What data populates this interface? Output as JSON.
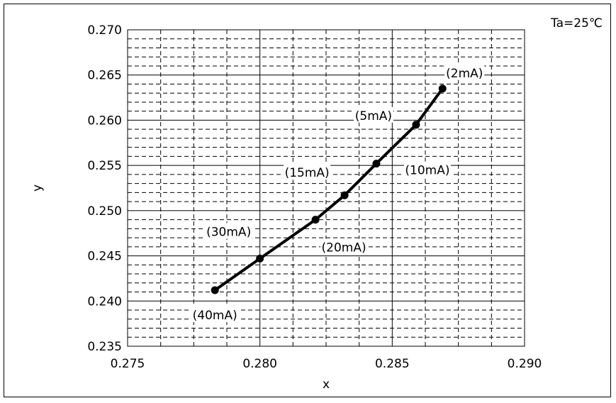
{
  "chart_data": {
    "type": "line",
    "annotation_top_right": "Ta=25℃",
    "xlabel": "x",
    "ylabel": "y",
    "xlim": [
      0.275,
      0.29
    ],
    "ylim": [
      0.235,
      0.27
    ],
    "x_ticks": [
      "0.275",
      "0.280",
      "0.285",
      "0.290"
    ],
    "y_ticks": [
      "0.235",
      "0.240",
      "0.245",
      "0.250",
      "0.255",
      "0.260",
      "0.265",
      "0.270"
    ],
    "grid": "major solid, minor dashed",
    "series": [
      {
        "points": [
          {
            "x": 0.2783,
            "y": 0.2412,
            "label": "(40mA)"
          },
          {
            "x": 0.28,
            "y": 0.2447,
            "label": "(30mA)"
          },
          {
            "x": 0.2821,
            "y": 0.249,
            "label": "(20mA)"
          },
          {
            "x": 0.2832,
            "y": 0.2517,
            "label": "(15mA)"
          },
          {
            "x": 0.2844,
            "y": 0.2552,
            "label": "(10mA)"
          },
          {
            "x": 0.2859,
            "y": 0.2595,
            "label": "(5mA)"
          },
          {
            "x": 0.2869,
            "y": 0.2635,
            "label": "(2mA)"
          }
        ]
      }
    ]
  }
}
